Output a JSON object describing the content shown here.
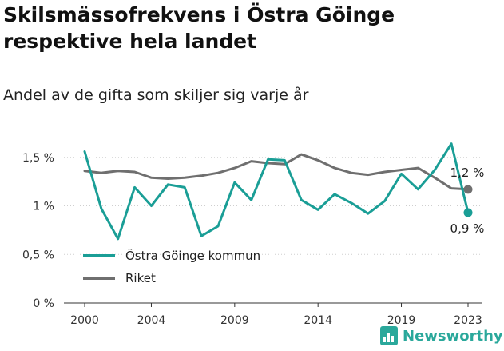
{
  "title": "Skilsmässofrekvens i Östra Göinge respektive hela landet",
  "subtitle": "Andel av de gifta som skiljer sig varje år",
  "brand": {
    "name": "Newsworthy",
    "icon": "bar-chart-icon"
  },
  "chart_data": {
    "type": "line",
    "title": "Skilsmässofrekvens i Östra Göinge respektive hela landet",
    "subtitle": "Andel av de gifta som skiljer sig varje år",
    "x": [
      2000,
      2001,
      2002,
      2003,
      2004,
      2005,
      2006,
      2007,
      2008,
      2009,
      2010,
      2011,
      2012,
      2013,
      2014,
      2015,
      2016,
      2017,
      2018,
      2019,
      2020,
      2021,
      2022,
      2023
    ],
    "x_ticks": [
      "2000",
      "2004",
      "2009",
      "2014",
      "2019",
      "2023"
    ],
    "x_tick_values": [
      2000,
      2004,
      2009,
      2014,
      2019,
      2023
    ],
    "y_ticks": [
      "0 %",
      "0,5 %",
      "1 %",
      "1,5 %"
    ],
    "y_tick_values": [
      0,
      0.5,
      1,
      1.5
    ],
    "ylim": [
      0,
      1.75
    ],
    "grid": true,
    "legend_position": "bottom-left",
    "series": [
      {
        "name": "Östra Göinge kommun",
        "color": "#1a9e96",
        "values": [
          1.56,
          0.97,
          0.66,
          1.19,
          1.0,
          1.22,
          1.19,
          0.69,
          0.79,
          1.24,
          1.06,
          1.48,
          1.47,
          1.06,
          0.96,
          1.12,
          1.03,
          0.92,
          1.05,
          1.33,
          1.17,
          1.37,
          1.64,
          0.93
        ],
        "end_label": "0,9 %"
      },
      {
        "name": "Riket",
        "color": "#6f6f6f",
        "values": [
          1.36,
          1.34,
          1.36,
          1.35,
          1.29,
          1.28,
          1.29,
          1.31,
          1.34,
          1.39,
          1.46,
          1.44,
          1.43,
          1.53,
          1.47,
          1.39,
          1.34,
          1.32,
          1.35,
          1.37,
          1.39,
          1.29,
          1.18,
          1.17
        ],
        "end_label": "1,2 %"
      }
    ]
  }
}
